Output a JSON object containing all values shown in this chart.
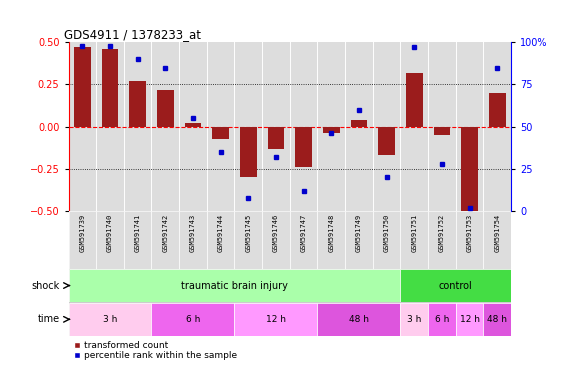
{
  "title": "GDS4911 / 1378233_at",
  "samples": [
    "GSM591739",
    "GSM591740",
    "GSM591741",
    "GSM591742",
    "GSM591743",
    "GSM591744",
    "GSM591745",
    "GSM591746",
    "GSM591747",
    "GSM591748",
    "GSM591749",
    "GSM591750",
    "GSM591751",
    "GSM591752",
    "GSM591753",
    "GSM591754"
  ],
  "bar_values": [
    0.47,
    0.46,
    0.27,
    0.22,
    0.02,
    -0.07,
    -0.3,
    -0.13,
    -0.24,
    -0.04,
    0.04,
    -0.17,
    0.32,
    -0.05,
    -0.5,
    0.2
  ],
  "dot_values": [
    98,
    98,
    90,
    85,
    55,
    35,
    8,
    32,
    12,
    46,
    60,
    20,
    97,
    28,
    2,
    85
  ],
  "ylim": [
    -0.5,
    0.5
  ],
  "y2lim": [
    0,
    100
  ],
  "yticks": [
    -0.5,
    -0.25,
    0.0,
    0.25,
    0.5
  ],
  "y2ticks": [
    0,
    25,
    50,
    75,
    100
  ],
  "hline_y": 0.0,
  "dotted_lines": [
    -0.25,
    0.25
  ],
  "bar_color": "#9B1C1C",
  "dot_color": "#0000CC",
  "bar_width": 0.6,
  "shock_groups": [
    {
      "label": "traumatic brain injury",
      "start": 0,
      "end": 12,
      "color": "#AAFFAA"
    },
    {
      "label": "control",
      "start": 12,
      "end": 16,
      "color": "#44DD44"
    }
  ],
  "time_groups": [
    {
      "label": "3 h",
      "start": 0,
      "end": 3,
      "color": "#FFCCEE"
    },
    {
      "label": "6 h",
      "start": 3,
      "end": 6,
      "color": "#EE66EE"
    },
    {
      "label": "12 h",
      "start": 6,
      "end": 9,
      "color": "#FF99FF"
    },
    {
      "label": "48 h",
      "start": 9,
      "end": 12,
      "color": "#DD55DD"
    },
    {
      "label": "3 h",
      "start": 12,
      "end": 13,
      "color": "#FFCCEE"
    },
    {
      "label": "6 h",
      "start": 13,
      "end": 14,
      "color": "#EE66EE"
    },
    {
      "label": "12 h",
      "start": 14,
      "end": 15,
      "color": "#FF99FF"
    },
    {
      "label": "48 h",
      "start": 15,
      "end": 16,
      "color": "#DD55DD"
    }
  ],
  "legend_bar_label": "transformed count",
  "legend_dot_label": "percentile rank within the sample",
  "shock_label": "shock",
  "time_label": "time",
  "fig_bg": "#FFFFFF",
  "chart_bg": "#DDDDDD",
  "cell_bg": "#CCCCCC"
}
